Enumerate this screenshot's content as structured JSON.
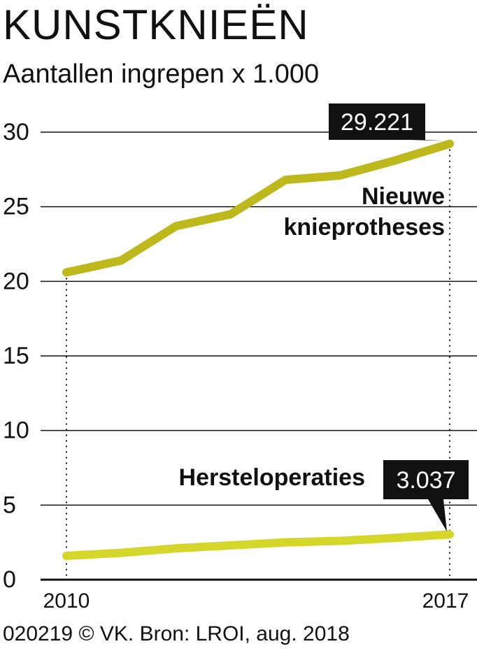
{
  "header": {
    "title": "KUNSTKNIEËN",
    "subtitle": "Aantallen ingrepen x 1.000"
  },
  "footer": {
    "source": "020219 © VK. Bron: LROI, aug. 2018"
  },
  "colors": {
    "nieuwe": "#bdb81c",
    "herstel": "#d4d72a",
    "callout": "#111111"
  },
  "chart_data": {
    "type": "line",
    "x": [
      2010,
      2011,
      2012,
      2013,
      2014,
      2015,
      2016,
      2017
    ],
    "x_tick_labels": [
      "2010",
      "2017"
    ],
    "y_ticks": [
      "0",
      "5",
      "10",
      "15",
      "20",
      "25",
      "30"
    ],
    "ylim": [
      0,
      30
    ],
    "grid": true,
    "series": [
      {
        "name_lines": [
          "Nieuwe",
          "knieprotheses"
        ],
        "values": [
          20.6,
          21.4,
          23.7,
          24.5,
          26.8,
          27.1,
          28.1,
          29.221
        ],
        "callout": "29.221"
      },
      {
        "name_lines": [
          "Hersteloperaties"
        ],
        "values": [
          1.6,
          1.8,
          2.1,
          2.3,
          2.5,
          2.6,
          2.8,
          3.037
        ],
        "callout": "3.037"
      }
    ]
  }
}
